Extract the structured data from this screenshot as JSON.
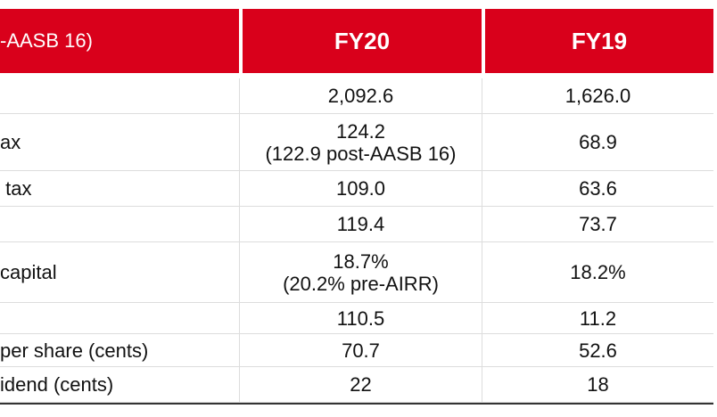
{
  "table": {
    "header": [
      "-AASB 16)",
      "FY20",
      "FY19"
    ],
    "rows": [
      [
        null,
        [
          "2,092.6"
        ],
        [
          "1,626.0"
        ]
      ],
      [
        "ax",
        [
          "124.2",
          "(122.9 post-AASB 16)"
        ],
        [
          "68.9"
        ]
      ],
      [
        " tax",
        [
          "109.0"
        ],
        [
          "63.6"
        ]
      ],
      [
        null,
        [
          "119.4"
        ],
        [
          "73.7"
        ]
      ],
      [
        "capital",
        [
          "18.7%",
          "(20.2% pre-AIRR)"
        ],
        [
          "18.2%"
        ]
      ],
      [
        null,
        [
          "110.5"
        ],
        [
          "11.2"
        ]
      ],
      [
        "per share (cents)",
        [
          "70.7"
        ],
        [
          "52.6"
        ]
      ],
      [
        "idend (cents)",
        [
          "22"
        ],
        [
          "18"
        ]
      ]
    ]
  }
}
